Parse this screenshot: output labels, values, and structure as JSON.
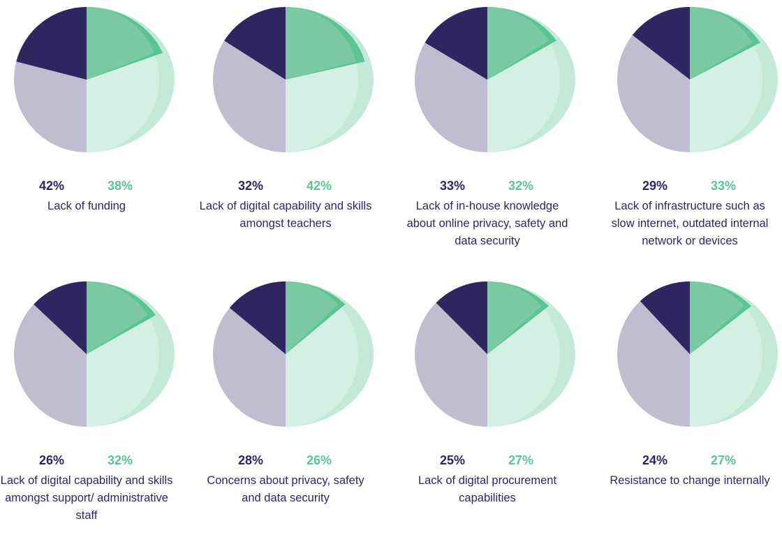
{
  "chart_data": [
    {
      "type": "pie",
      "title": "Lack of funding",
      "values": [
        42,
        38
      ],
      "value_labels": [
        "42%",
        "38%"
      ],
      "colors": [
        "#2e2660",
        "#7bc9a3"
      ]
    },
    {
      "type": "pie",
      "title": "Lack of digital capability and skills amongst teachers",
      "values": [
        32,
        42
      ],
      "value_labels": [
        "32%",
        "42%"
      ],
      "colors": [
        "#2e2660",
        "#7bc9a3"
      ]
    },
    {
      "type": "pie",
      "title": "Lack of in-house knowledge about online privacy, safety and data security",
      "values": [
        33,
        32
      ],
      "value_labels": [
        "33%",
        "32%"
      ],
      "colors": [
        "#2e2660",
        "#7bc9a3"
      ]
    },
    {
      "type": "pie",
      "title": "Lack of infrastructure such as slow internet, outdated internal network or devices",
      "values": [
        29,
        33
      ],
      "value_labels": [
        "29%",
        "33%"
      ],
      "colors": [
        "#2e2660",
        "#7bc9a3"
      ]
    },
    {
      "type": "pie",
      "title": "Lack of digital capability and skills amongst support/ administrative staff",
      "values": [
        26,
        32
      ],
      "value_labels": [
        "26%",
        "32%"
      ],
      "colors": [
        "#2e2660",
        "#7bc9a3"
      ]
    },
    {
      "type": "pie",
      "title": "Concerns about privacy, safety and data security",
      "values": [
        28,
        26
      ],
      "value_labels": [
        "28%",
        "26%"
      ],
      "colors": [
        "#2e2660",
        "#7bc9a3"
      ]
    },
    {
      "type": "pie",
      "title": "Lack of digital procurement capabilities",
      "values": [
        25,
        27
      ],
      "value_labels": [
        "25%",
        "27%"
      ],
      "colors": [
        "#2e2660",
        "#7bc9a3"
      ]
    },
    {
      "type": "pie",
      "title": "Resistance to change internally",
      "values": [
        24,
        27
      ],
      "value_labels": [
        "24%",
        "27%"
      ],
      "colors": [
        "#2e2660",
        "#7bc9a3"
      ]
    }
  ]
}
